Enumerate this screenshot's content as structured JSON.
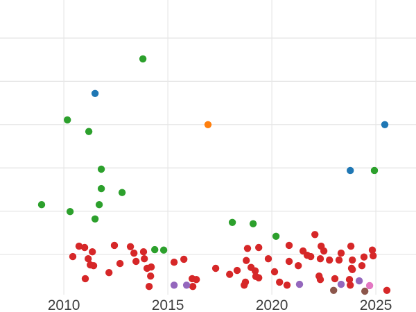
{
  "chart_data": {
    "type": "scatter",
    "title": "",
    "xlabel": "",
    "ylabel": "",
    "legend": "none",
    "grid": true,
    "y_axis_tick_labels_visible": false,
    "x_ticks": [
      2010,
      2015,
      2020,
      2025
    ],
    "x_tick_labels": [
      "2010",
      "2015",
      "2020",
      "2025"
    ],
    "xlim": [
      2006.93,
      2026.93
    ],
    "ylim": [
      -0.33,
      6.88
    ],
    "y_gridline_values": [
      1,
      2,
      3,
      4,
      5,
      6
    ],
    "series": [
      {
        "name": "red",
        "color": "#d62728",
        "points": [
          [
            2010.73,
            1.19
          ],
          [
            2011.0,
            1.16
          ],
          [
            2011.37,
            1.06
          ],
          [
            2010.43,
            0.95
          ],
          [
            2011.17,
            0.9
          ],
          [
            2011.27,
            0.76
          ],
          [
            2011.43,
            0.74
          ],
          [
            2011.03,
            0.44
          ],
          [
            2012.43,
            1.21
          ],
          [
            2012.7,
            0.79
          ],
          [
            2012.17,
            0.58
          ],
          [
            2013.2,
            1.18
          ],
          [
            2013.37,
            1.03
          ],
          [
            2013.47,
            0.84
          ],
          [
            2013.83,
            1.06
          ],
          [
            2013.87,
            0.9
          ],
          [
            2014.0,
            0.68
          ],
          [
            2014.2,
            0.71
          ],
          [
            2014.17,
            0.5
          ],
          [
            2014.1,
            0.26
          ],
          [
            2015.3,
            0.82
          ],
          [
            2015.77,
            0.89
          ],
          [
            2016.17,
            0.44
          ],
          [
            2016.37,
            0.42
          ],
          [
            2016.2,
            0.26
          ],
          [
            2017.3,
            0.68
          ],
          [
            2017.97,
            0.54
          ],
          [
            2018.33,
            0.63
          ],
          [
            2018.77,
            0.86
          ],
          [
            2018.83,
            1.14
          ],
          [
            2018.73,
            0.36
          ],
          [
            2018.67,
            0.29
          ],
          [
            2019.37,
            1.16
          ],
          [
            2019.0,
            0.7
          ],
          [
            2019.2,
            0.62
          ],
          [
            2019.23,
            0.49
          ],
          [
            2019.37,
            0.46
          ],
          [
            2019.83,
            0.9
          ],
          [
            2020.13,
            0.6
          ],
          [
            2020.37,
            0.36
          ],
          [
            2020.73,
            0.29
          ],
          [
            2020.83,
            1.21
          ],
          [
            2020.83,
            0.84
          ],
          [
            2021.5,
            1.08
          ],
          [
            2021.7,
            0.98
          ],
          [
            2021.87,
            0.95
          ],
          [
            2021.27,
            0.74
          ],
          [
            2022.07,
            1.46
          ],
          [
            2022.37,
            1.19
          ],
          [
            2022.5,
            1.08
          ],
          [
            2022.33,
            0.9
          ],
          [
            2022.77,
            0.87
          ],
          [
            2022.27,
            0.5
          ],
          [
            2022.33,
            0.42
          ],
          [
            2023.03,
            0.44
          ],
          [
            2023.33,
            1.03
          ],
          [
            2023.23,
            0.87
          ],
          [
            2023.8,
            1.19
          ],
          [
            2023.87,
            0.87
          ],
          [
            2023.83,
            0.68
          ],
          [
            2023.87,
            0.65
          ],
          [
            2023.73,
            0.42
          ],
          [
            2023.77,
            0.29
          ],
          [
            2024.43,
            0.94
          ],
          [
            2024.83,
            1.1
          ],
          [
            2024.87,
            0.97
          ],
          [
            2024.33,
            0.74
          ],
          [
            2025.53,
            0.17
          ]
        ]
      },
      {
        "name": "green",
        "color": "#2ca02c",
        "points": [
          [
            2013.8,
            5.52
          ],
          [
            2010.17,
            4.11
          ],
          [
            2011.2,
            3.84
          ],
          [
            2011.8,
            2.97
          ],
          [
            2011.8,
            2.52
          ],
          [
            2012.8,
            2.43
          ],
          [
            2008.93,
            2.15
          ],
          [
            2011.7,
            2.15
          ],
          [
            2010.3,
            1.99
          ],
          [
            2011.5,
            1.82
          ],
          [
            2024.93,
            2.94
          ],
          [
            2018.1,
            1.74
          ],
          [
            2019.1,
            1.71
          ],
          [
            2020.2,
            1.42
          ],
          [
            2014.37,
            1.11
          ],
          [
            2014.8,
            1.1
          ]
        ]
      },
      {
        "name": "blue",
        "color": "#1f77b4",
        "points": [
          [
            2011.5,
            4.72
          ],
          [
            2025.43,
            4.0
          ],
          [
            2023.77,
            2.94
          ]
        ]
      },
      {
        "name": "orange",
        "color": "#ff7f0e",
        "points": [
          [
            2016.93,
            4.0
          ]
        ]
      },
      {
        "name": "purple",
        "color": "#9467bd",
        "points": [
          [
            2015.3,
            0.29
          ],
          [
            2015.9,
            0.29
          ],
          [
            2021.33,
            0.31
          ],
          [
            2023.33,
            0.31
          ],
          [
            2024.2,
            0.39
          ]
        ]
      },
      {
        "name": "brown",
        "color": "#8c564b",
        "points": [
          [
            2022.97,
            0.17
          ],
          [
            2024.47,
            0.15
          ]
        ]
      },
      {
        "name": "pink",
        "color": "#e377c2",
        "points": [
          [
            2024.7,
            0.28
          ]
        ]
      }
    ]
  },
  "style": {
    "background": "#ffffff",
    "grid_color": "#e7e7e7",
    "tick_label_color": "#3d3d3d"
  }
}
